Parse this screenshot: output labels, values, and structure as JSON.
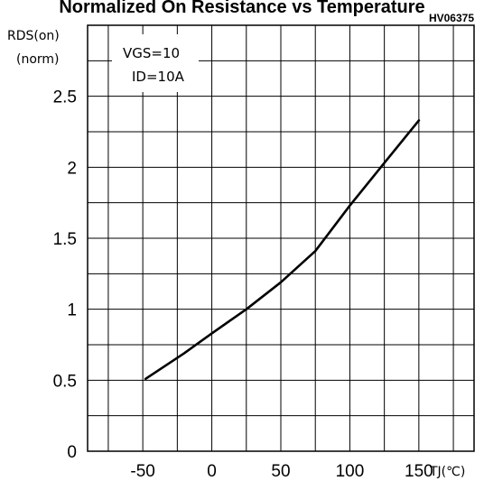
{
  "chart_data": {
    "type": "line",
    "title": "Normalized On Resistance vs Temperature",
    "code": "HV06375",
    "ylabel": "RDS(on)",
    "ylabel_unit": "(norm)",
    "xlabel": "TJ(℃)",
    "xlim": [
      -90,
      190
    ],
    "ylim": [
      0,
      3
    ],
    "x_ticks": [
      "-50",
      "0",
      "50",
      "100",
      "150"
    ],
    "x_tick_values": [
      -50,
      0,
      50,
      100,
      150
    ],
    "y_ticks": [
      "0",
      "0.5",
      "1",
      "1.5",
      "2",
      "2.5"
    ],
    "y_tick_values": [
      0,
      0.5,
      1,
      1.5,
      2,
      2.5
    ],
    "annotation": [
      "VGS=10",
      "ID=10A"
    ],
    "grid": true,
    "series": [
      {
        "x": [
          -48,
          -20,
          0,
          25,
          50,
          75,
          100,
          125,
          150
        ],
        "y": [
          0.51,
          0.69,
          0.83,
          1.0,
          1.19,
          1.41,
          1.73,
          2.03,
          2.33
        ]
      }
    ]
  }
}
